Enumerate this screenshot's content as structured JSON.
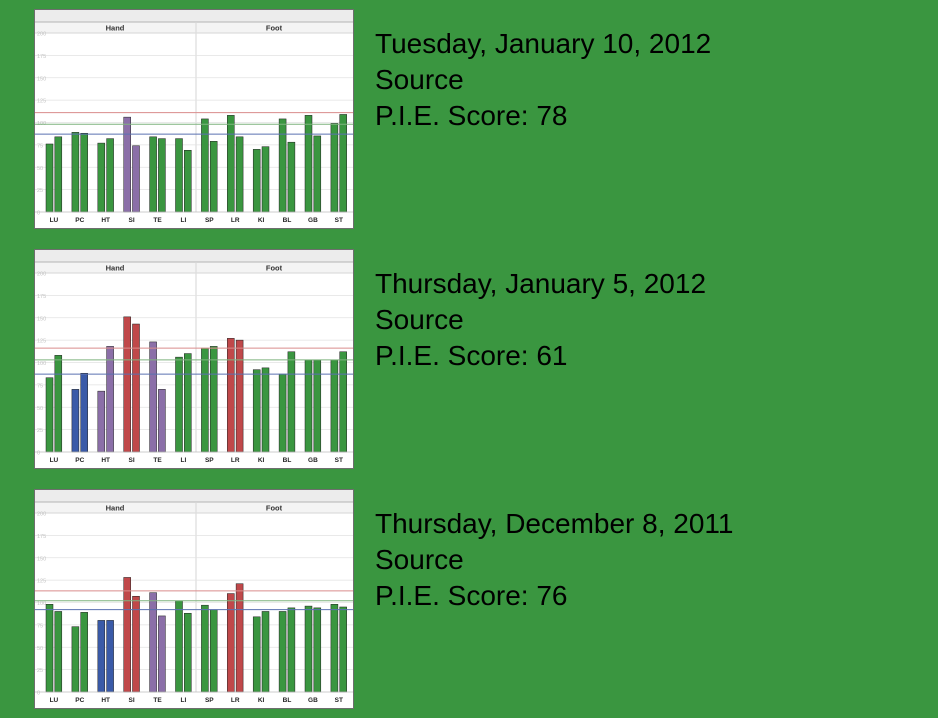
{
  "chart_data": [
    {
      "type": "bar",
      "groups": [
        "Hand",
        "Foot"
      ],
      "categories": [
        "LU",
        "PC",
        "HT",
        "SI",
        "TE",
        "LI",
        "SP",
        "LR",
        "KI",
        "BL",
        "GB",
        "ST"
      ],
      "yticks": [
        "200",
        "175",
        "150",
        "125",
        "100",
        "75",
        "50",
        "25",
        "0"
      ],
      "ylim": [
        0,
        200
      ],
      "reference_lines": [
        {
          "value": 111,
          "color": "#d98c8c"
        },
        {
          "value": 98,
          "color": "#7fb37f"
        },
        {
          "value": 87,
          "color": "#5a70b0"
        }
      ],
      "values": [
        [
          76,
          84
        ],
        [
          89,
          88
        ],
        [
          77,
          82
        ],
        [
          106,
          74
        ],
        [
          84,
          82
        ],
        [
          82,
          69
        ],
        [
          104,
          79
        ],
        [
          108,
          84
        ],
        [
          70,
          73
        ],
        [
          104,
          78
        ],
        [
          108,
          85
        ],
        [
          99,
          109
        ]
      ],
      "colors": [
        [
          "green",
          "green"
        ],
        [
          "green",
          "green"
        ],
        [
          "green",
          "green"
        ],
        [
          "purple",
          "purple"
        ],
        [
          "green",
          "green"
        ],
        [
          "green",
          "green"
        ],
        [
          "green",
          "green"
        ],
        [
          "green",
          "green"
        ],
        [
          "green",
          "green"
        ],
        [
          "green",
          "green"
        ],
        [
          "green",
          "green"
        ],
        [
          "green",
          "green"
        ]
      ]
    },
    {
      "type": "bar",
      "groups": [
        "Hand",
        "Foot"
      ],
      "categories": [
        "LU",
        "PC",
        "HT",
        "SI",
        "TE",
        "LI",
        "SP",
        "LR",
        "KI",
        "BL",
        "GB",
        "ST"
      ],
      "yticks": [
        "200",
        "175",
        "150",
        "125",
        "100",
        "75",
        "50",
        "25",
        "0"
      ],
      "ylim": [
        0,
        200
      ],
      "reference_lines": [
        {
          "value": 116,
          "color": "#d98c8c"
        },
        {
          "value": 103,
          "color": "#7fb37f"
        },
        {
          "value": 87,
          "color": "#5a70b0"
        }
      ],
      "values": [
        [
          83,
          108
        ],
        [
          70,
          88
        ],
        [
          68,
          118
        ],
        [
          151,
          143
        ],
        [
          123,
          70
        ],
        [
          106,
          110
        ],
        [
          116,
          118
        ],
        [
          127,
          125
        ],
        [
          92,
          94
        ],
        [
          87,
          112
        ],
        [
          103,
          103
        ],
        [
          103,
          112
        ]
      ],
      "colors": [
        [
          "green",
          "green"
        ],
        [
          "blue",
          "blue"
        ],
        [
          "purple",
          "purple"
        ],
        [
          "red",
          "red"
        ],
        [
          "purple",
          "purple"
        ],
        [
          "green",
          "green"
        ],
        [
          "green",
          "green"
        ],
        [
          "red",
          "red"
        ],
        [
          "green",
          "green"
        ],
        [
          "green",
          "green"
        ],
        [
          "green",
          "green"
        ],
        [
          "green",
          "green"
        ]
      ]
    },
    {
      "type": "bar",
      "groups": [
        "Hand",
        "Foot"
      ],
      "categories": [
        "LU",
        "PC",
        "HT",
        "SI",
        "TE",
        "LI",
        "SP",
        "LR",
        "KI",
        "BL",
        "GB",
        "ST"
      ],
      "yticks": [
        "200",
        "175",
        "150",
        "125",
        "100",
        "75",
        "50",
        "25",
        "0"
      ],
      "ylim": [
        0,
        200
      ],
      "reference_lines": [
        {
          "value": 113,
          "color": "#d98c8c"
        },
        {
          "value": 102,
          "color": "#7fb37f"
        },
        {
          "value": 92,
          "color": "#5a70b0"
        }
      ],
      "values": [
        [
          98,
          90
        ],
        [
          73,
          89
        ],
        [
          80,
          80
        ],
        [
          128,
          107
        ],
        [
          111,
          85
        ],
        [
          102,
          88
        ],
        [
          97,
          92
        ],
        [
          110,
          121
        ],
        [
          84,
          90
        ],
        [
          90,
          94
        ],
        [
          96,
          94
        ],
        [
          98,
          95
        ]
      ],
      "colors": [
        [
          "green",
          "green"
        ],
        [
          "green",
          "green"
        ],
        [
          "blue",
          "blue"
        ],
        [
          "red",
          "red"
        ],
        [
          "purple",
          "purple"
        ],
        [
          "green",
          "green"
        ],
        [
          "green",
          "green"
        ],
        [
          "red",
          "red"
        ],
        [
          "green",
          "green"
        ],
        [
          "green",
          "green"
        ],
        [
          "green",
          "green"
        ],
        [
          "green",
          "green"
        ]
      ]
    }
  ],
  "palette": {
    "green": "#3a9640",
    "red": "#c0484a",
    "blue": "#3a5aa8",
    "purple": "#8b6fa8",
    "background": "#3a9640"
  },
  "entries": [
    {
      "date": "Tuesday, January 10, 2012",
      "type": "Source",
      "score": "P.I.E. Score: 78"
    },
    {
      "date": "Thursday, January 5, 2012",
      "type": "Source",
      "score": "P.I.E. Score: 61"
    },
    {
      "date": "Thursday, December 8, 2011",
      "type": "Source",
      "score": "P.I.E. Score: 76"
    }
  ]
}
